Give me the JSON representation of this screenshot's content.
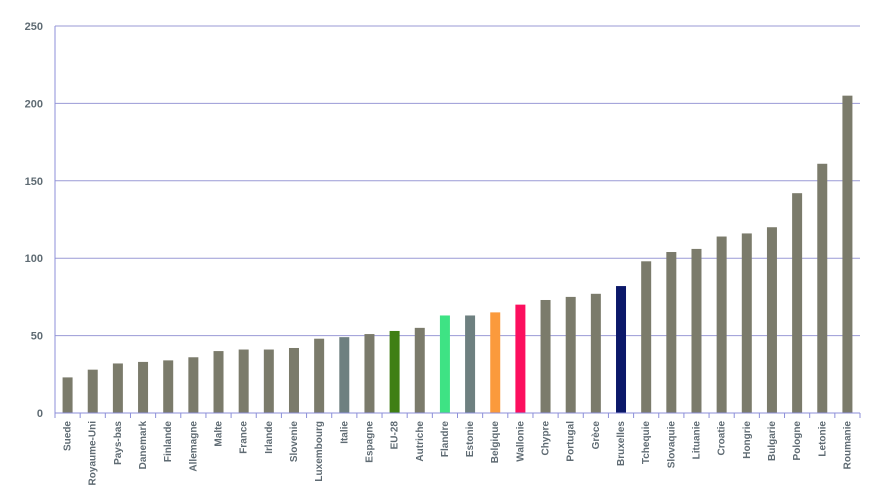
{
  "chart_data": {
    "type": "bar",
    "title": "",
    "xlabel": "",
    "ylabel": "",
    "ylim": [
      0,
      250
    ],
    "yticks": [
      0,
      50,
      100,
      150,
      200,
      250
    ],
    "grid": true,
    "categories": [
      "Suede",
      "Royaume-Uni",
      "Pays-bas",
      "Danemark",
      "Finlande",
      "Allemagne",
      "Malte",
      "France",
      "Irlande",
      "Slovenie",
      "Luxembourg",
      "Italie",
      "Espagne",
      "EU-28",
      "Autriche",
      "Flandre",
      "Estonie",
      "Belgique",
      "Wallonie",
      "Chypre",
      "Portugal",
      "Grèce",
      "Bruxelles",
      "Tchequie",
      "Slovaquie",
      "Lituanie",
      "Croatie",
      "Hongrie",
      "Bulgarie",
      "Pologne",
      "Letonie",
      "Roumanie"
    ],
    "values": [
      23,
      28,
      32,
      33,
      34,
      36,
      40,
      41,
      41,
      42,
      48,
      49,
      51,
      53,
      55,
      63,
      63,
      65,
      70,
      73,
      75,
      77,
      82,
      98,
      104,
      106,
      114,
      116,
      120,
      142,
      161,
      205
    ],
    "colors": [
      "#7b7b6b",
      "#7b7b6b",
      "#7b7b6b",
      "#7b7b6b",
      "#7b7b6b",
      "#7b7b6b",
      "#7b7b6b",
      "#7b7b6b",
      "#7b7b6b",
      "#7b7b6b",
      "#7b7b6b",
      "#6e8080",
      "#7b7b6b",
      "#3f7f14",
      "#7b7b6b",
      "#3ee384",
      "#6e8080",
      "#fb9a3c",
      "#fc0f5e",
      "#7b7b6b",
      "#7b7b6b",
      "#7b7b6b",
      "#0b1869",
      "#7b7b6b",
      "#7b7b6b",
      "#7b7b6b",
      "#7b7b6b",
      "#7b7b6b",
      "#7b7b6b",
      "#7b7b6b",
      "#7b7b6b",
      "#7b7b6b"
    ],
    "axis_color": "#8c8fd9",
    "gridline_color": "#9a9ad6",
    "label_color": "#5f6b73"
  }
}
